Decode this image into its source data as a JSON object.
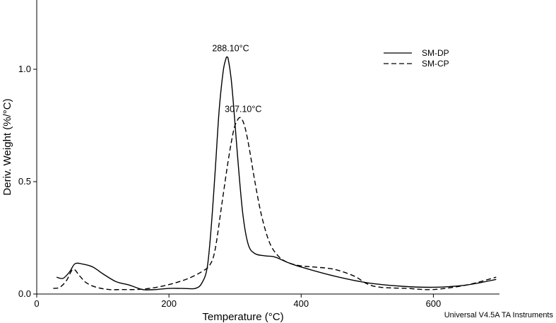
{
  "chart_data": {
    "type": "line",
    "xlabel": "Temperature (°C)",
    "ylabel": "Deriv. Weight (%/°C)",
    "xlim": [
      0,
      700
    ],
    "ylim": [
      0,
      1.25
    ],
    "x_ticks": [
      0,
      200,
      400,
      600
    ],
    "x_tick_labels": [
      "0",
      "200",
      "400",
      "600"
    ],
    "y_ticks": [
      0,
      0.5,
      1.0
    ],
    "y_tick_labels": [
      "0.0",
      "0.5",
      "1.0"
    ],
    "grid": false,
    "legend_position": "top-right",
    "series": [
      {
        "name": "SM-DP",
        "style": "solid",
        "color": "#000000",
        "x": [
          30,
          40,
          50,
          58,
          70,
          85,
          100,
          120,
          140,
          160,
          180,
          200,
          220,
          240,
          250,
          258,
          264,
          270,
          276,
          282,
          286,
          288,
          290,
          294,
          298,
          305,
          312,
          320,
          330,
          345,
          360,
          380,
          400,
          450,
          500,
          550,
          600,
          650,
          695
        ],
        "y": [
          0.075,
          0.07,
          0.1,
          0.135,
          0.133,
          0.12,
          0.09,
          0.055,
          0.04,
          0.02,
          0.02,
          0.025,
          0.025,
          0.025,
          0.05,
          0.12,
          0.3,
          0.55,
          0.82,
          0.99,
          1.045,
          1.055,
          1.04,
          0.96,
          0.83,
          0.57,
          0.35,
          0.22,
          0.18,
          0.17,
          0.165,
          0.14,
          0.12,
          0.08,
          0.05,
          0.035,
          0.03,
          0.04,
          0.065
        ]
      },
      {
        "name": "SM-CP",
        "style": "dashed",
        "color": "#000000",
        "x": [
          25,
          35,
          45,
          55,
          65,
          75,
          90,
          110,
          130,
          150,
          170,
          190,
          210,
          230,
          250,
          262,
          270,
          280,
          290,
          298,
          303,
          307,
          311,
          316,
          322,
          330,
          340,
          352,
          365,
          380,
          400,
          420,
          450,
          480,
          500,
          520,
          560,
          600,
          650,
          695
        ],
        "y": [
          0.025,
          0.03,
          0.06,
          0.11,
          0.08,
          0.05,
          0.03,
          0.02,
          0.02,
          0.02,
          0.025,
          0.035,
          0.05,
          0.07,
          0.1,
          0.13,
          0.2,
          0.4,
          0.6,
          0.73,
          0.77,
          0.785,
          0.775,
          0.73,
          0.64,
          0.5,
          0.35,
          0.23,
          0.17,
          0.14,
          0.125,
          0.12,
          0.11,
          0.08,
          0.045,
          0.03,
          0.025,
          0.02,
          0.04,
          0.075
        ]
      }
    ],
    "annotations": [
      {
        "text": "288.10°C",
        "x": 288,
        "y": 1.055
      },
      {
        "text": "307.10°C",
        "x": 307,
        "y": 0.785
      }
    ]
  },
  "footer": "Universal V4.5A TA Instruments"
}
